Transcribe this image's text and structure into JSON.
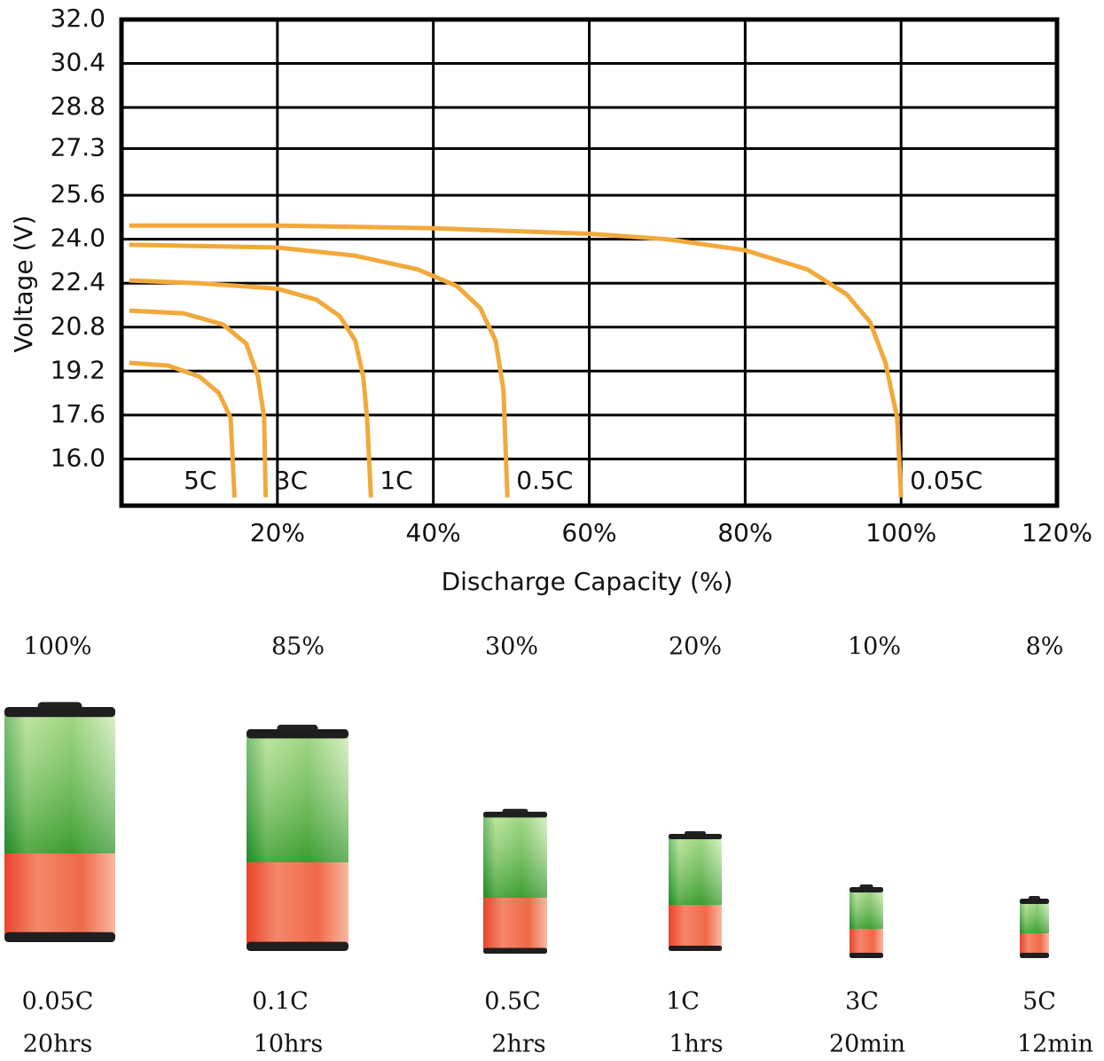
{
  "chart_data": {
    "type": "line",
    "y_label": "Voltage (V)",
    "x_label": "Discharge Capacity (%)",
    "xlim": [
      0,
      120
    ],
    "xticks": [
      {
        "value": 20,
        "label": "20%"
      },
      {
        "value": 40,
        "label": "40%"
      },
      {
        "value": 60,
        "label": "60%"
      },
      {
        "value": 80,
        "label": "80%"
      },
      {
        "value": 100,
        "label": "100%"
      },
      {
        "value": 120,
        "label": "120%"
      }
    ],
    "ylim": [
      14.3,
      32
    ],
    "yticks": [
      {
        "value": 16,
        "label": "16.0"
      },
      17.6,
      19.2,
      20.8,
      22.4,
      {
        "value": 24,
        "label": "24.0"
      },
      25.6,
      27.3,
      28.8,
      30.4,
      {
        "value": 32,
        "label": "32.0"
      }
    ],
    "grid": true,
    "series": [
      {
        "name": "0.05C",
        "color": "#f2a93b",
        "x": [
          1,
          20,
          40,
          60,
          70,
          80,
          88,
          93,
          96,
          98,
          99.5,
          100
        ],
        "values": [
          24.5,
          24.5,
          24.4,
          24.2,
          24.0,
          23.6,
          22.9,
          22.0,
          21.0,
          19.5,
          17.5,
          14.6
        ]
      },
      {
        "name": "0.5C",
        "color": "#f2a93b",
        "x": [
          1,
          20,
          30,
          38,
          43,
          46,
          48,
          49,
          49.5
        ],
        "values": [
          23.8,
          23.7,
          23.4,
          22.9,
          22.3,
          21.5,
          20.3,
          18.5,
          14.6
        ]
      },
      {
        "name": "1C",
        "color": "#f2a93b",
        "x": [
          1,
          10,
          20,
          25,
          28,
          30,
          31,
          31.5,
          32
        ],
        "values": [
          22.5,
          22.4,
          22.2,
          21.8,
          21.2,
          20.3,
          19.0,
          17.5,
          14.6
        ]
      },
      {
        "name": "3C",
        "color": "#f2a93b",
        "x": [
          1,
          8,
          13,
          16,
          17.5,
          18.3,
          18.5
        ],
        "values": [
          21.4,
          21.3,
          20.9,
          20.2,
          19.0,
          17.5,
          14.6
        ]
      },
      {
        "name": "5C",
        "color": "#f2a93b",
        "x": [
          1,
          6,
          10,
          12.5,
          14,
          14.5
        ],
        "values": [
          19.5,
          19.4,
          19.0,
          18.4,
          17.5,
          14.6
        ]
      }
    ]
  },
  "batteries": [
    {
      "capacity": "100%",
      "rate": "0.05C",
      "time": "20hrs"
    },
    {
      "capacity": "85%",
      "rate": "0.1C",
      "time": "10hrs"
    },
    {
      "capacity": "30%",
      "rate": "0.5C",
      "time": "2hrs"
    },
    {
      "capacity": "20%",
      "rate": "1C",
      "time": "1hrs"
    },
    {
      "capacity": "10%",
      "rate": "3C",
      "time": "20min"
    },
    {
      "capacity": "8%",
      "rate": "5C",
      "time": "12min"
    }
  ]
}
